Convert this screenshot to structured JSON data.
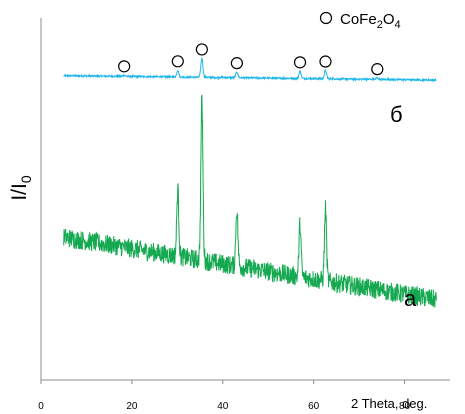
{
  "chart_data": {
    "type": "line",
    "xlabel": "2 Theta, deg.",
    "ylabel": "I/I",
    "ylabel_sub": "0",
    "xlim": [
      0,
      90
    ],
    "x_ticks": [
      0,
      20,
      40,
      60,
      80
    ],
    "y_ticks": [],
    "grid": false,
    "legend": {
      "placement": "top-right",
      "marker": "open-circle",
      "label_parts": [
        "CoFe",
        "2",
        "O",
        "4"
      ]
    },
    "x_range": [
      5,
      87
    ],
    "series": [
      {
        "name": "б",
        "color": "#1ab6ea",
        "baseline_start": 0.86,
        "baseline_end": 0.63,
        "noise": 0.045,
        "peaks": [
          {
            "x": 18.3,
            "height": 0.06,
            "marked": true
          },
          {
            "x": 30.1,
            "height": 0.36,
            "marked": true
          },
          {
            "x": 35.4,
            "height": 1.0,
            "marked": true
          },
          {
            "x": 43.1,
            "height": 0.3,
            "marked": true
          },
          {
            "x": 57.0,
            "height": 0.38,
            "marked": true
          },
          {
            "x": 62.6,
            "height": 0.44,
            "marked": true
          },
          {
            "x": 74.0,
            "height": 0.07,
            "marked": true
          }
        ]
      },
      {
        "name": "а",
        "color": "#14a850",
        "baseline_start": 0.58,
        "baseline_end": 0.19,
        "noise": 0.06,
        "peaks": [
          {
            "x": 30.1,
            "height": 0.42,
            "marked": false
          },
          {
            "x": 35.4,
            "height": 1.0,
            "marked": false
          },
          {
            "x": 43.1,
            "height": 0.36,
            "marked": false
          },
          {
            "x": 57.0,
            "height": 0.33,
            "marked": false
          },
          {
            "x": 62.6,
            "height": 0.45,
            "marked": false
          }
        ]
      }
    ]
  }
}
